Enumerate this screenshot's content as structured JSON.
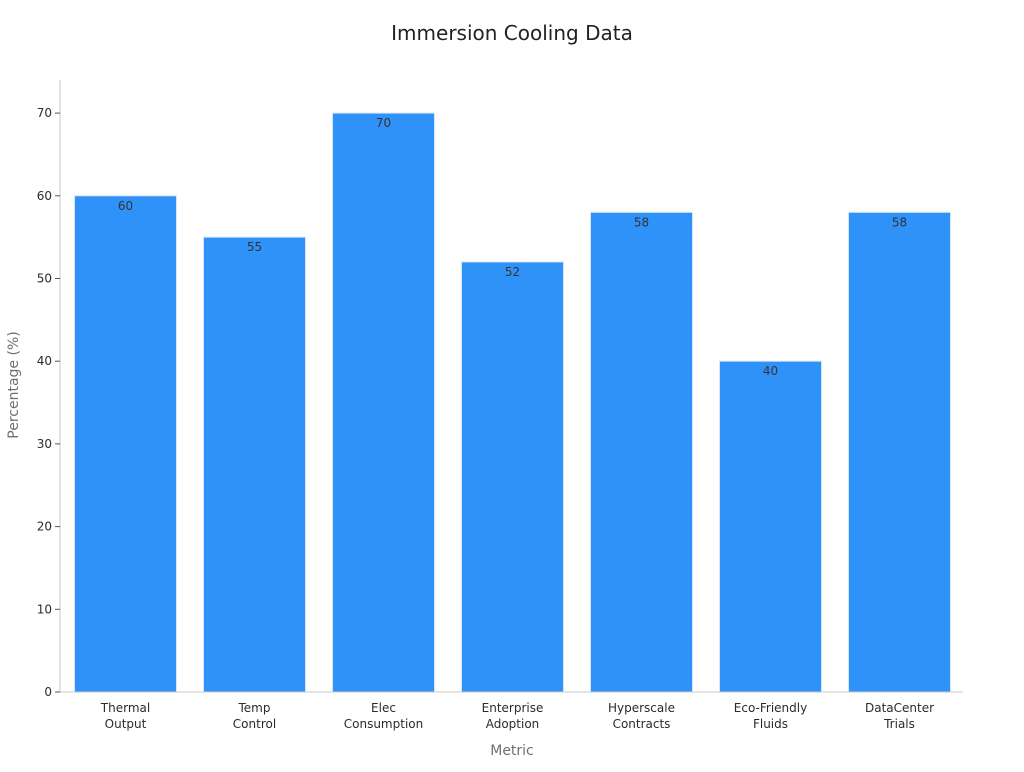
{
  "chart_data": {
    "type": "bar",
    "title": "Immersion Cooling Data",
    "xlabel": "Metric",
    "ylabel": "Percentage (%)",
    "categories": [
      [
        "Thermal",
        "Output"
      ],
      [
        "Temp",
        "Control"
      ],
      [
        "Elec",
        "Consumption"
      ],
      [
        "Enterprise",
        "Adoption"
      ],
      [
        "Hyperscale",
        "Contracts"
      ],
      [
        "Eco-Friendly",
        "Fluids"
      ],
      [
        "DataCenter",
        "Trials"
      ]
    ],
    "values": [
      60,
      55,
      70,
      52,
      58,
      40,
      58
    ],
    "ylim": [
      0,
      74
    ],
    "yticks": [
      0,
      10,
      20,
      30,
      40,
      50,
      60,
      70
    ],
    "grid": false,
    "legend": "none",
    "colors": {
      "bar": "#2f92f8",
      "bar_edge": "#d6e6f5",
      "axis": "#c8c8c8",
      "tick_text": "#2b2b2b",
      "label_text": "#707070",
      "title_text": "#222222",
      "value_text": "#333333"
    }
  }
}
